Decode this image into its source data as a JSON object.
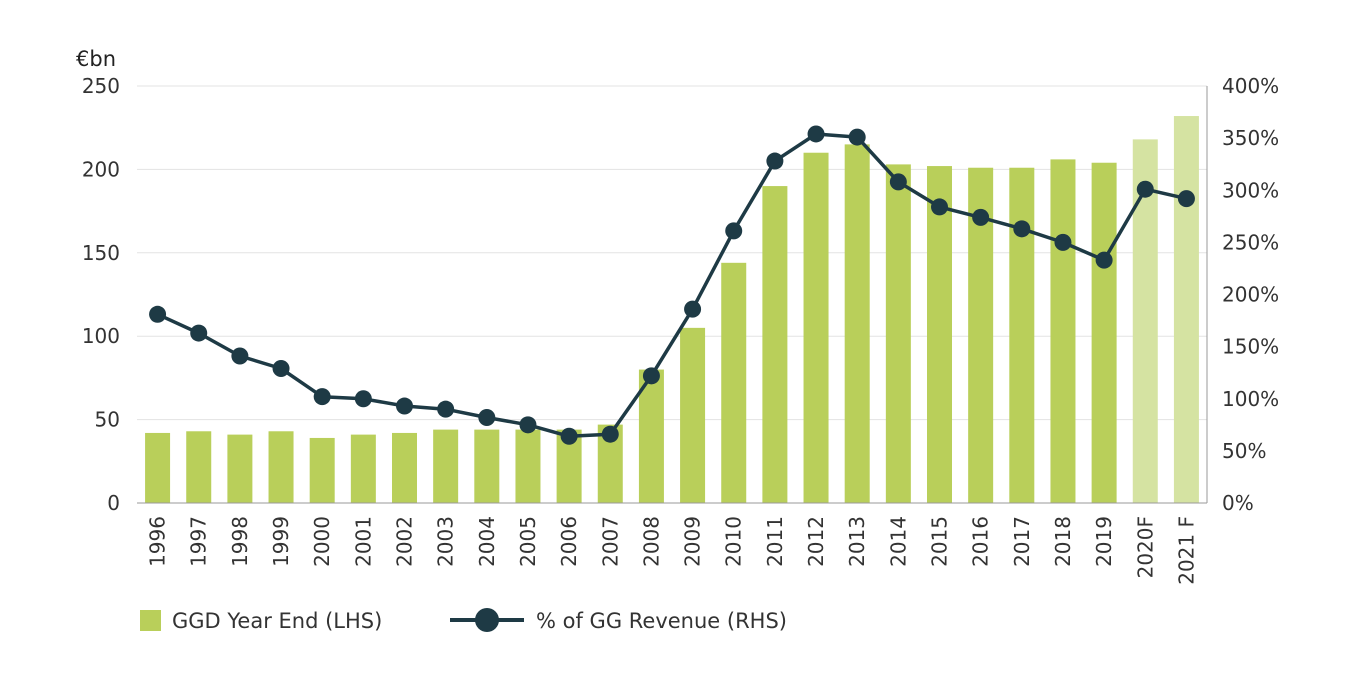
{
  "chart_data": {
    "type": "bar",
    "unit_label": "€bn",
    "categories": [
      "1996",
      "1997",
      "1998",
      "1999",
      "2000",
      "2001",
      "2002",
      "2003",
      "2004",
      "2005",
      "2006",
      "2007",
      "2008",
      "2009",
      "2010",
      "2011",
      "2012",
      "2013",
      "2014",
      "2015",
      "2016",
      "2017",
      "2018",
      "2019",
      "2020F",
      "2021 F"
    ],
    "series": [
      {
        "name": "GGD Year End (LHS)",
        "type": "bar",
        "axis": "left",
        "color": "#b9cf5a",
        "forecast_color": "#d5e3a2",
        "values": [
          42,
          43,
          41,
          43,
          39,
          41,
          42,
          44,
          44,
          44,
          44,
          47,
          80,
          105,
          144,
          190,
          210,
          215,
          203,
          202,
          201,
          201,
          206,
          204,
          218,
          232
        ]
      },
      {
        "name": "% of GG Revenue (RHS)",
        "type": "line",
        "axis": "right",
        "color": "#1e3a45",
        "values": [
          181,
          163,
          141,
          129,
          102,
          100,
          93,
          90,
          82,
          75,
          64,
          66,
          122,
          186,
          261,
          328,
          354,
          351,
          308,
          284,
          274,
          263,
          250,
          233,
          301,
          292
        ]
      }
    ],
    "forecast_categories": [
      "2020F",
      "2021 F"
    ],
    "y_left": {
      "min": 0,
      "max": 250,
      "ticks": [
        "0",
        "50",
        "100",
        "150",
        "200",
        "250"
      ],
      "tick_values": [
        0,
        50,
        100,
        150,
        200,
        250
      ]
    },
    "y_right": {
      "min": 0,
      "max": 400,
      "ticks": [
        "0%",
        "50%",
        "100%",
        "150%",
        "200%",
        "250%",
        "300%",
        "350%",
        "400%"
      ],
      "tick_values": [
        0,
        50,
        100,
        150,
        200,
        250,
        300,
        350,
        400
      ]
    },
    "grid": true,
    "legend_position": "bottom-left"
  }
}
